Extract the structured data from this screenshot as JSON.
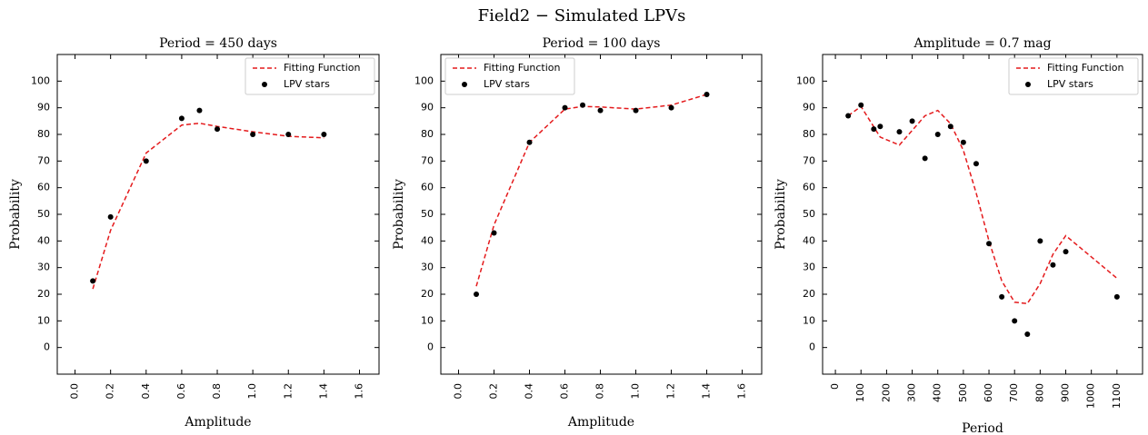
{
  "title": "Field2 − Simulated LPVs",
  "chart_data": [
    {
      "type": "line",
      "title": "Period = 450 days",
      "xlabel": "Amplitude",
      "ylabel": "Probability",
      "xlim": [
        -0.1,
        1.71
      ],
      "ylim": [
        -10,
        110
      ],
      "xticks": [
        {
          "value": 0,
          "label": "0.0"
        },
        {
          "value": 0.2,
          "label": "0.2"
        },
        {
          "value": 0.4,
          "label": "0.4"
        },
        {
          "value": 0.6,
          "label": "0.6"
        },
        {
          "value": 0.8,
          "label": "0.8"
        },
        {
          "value": 1,
          "label": "1.0"
        },
        {
          "value": 1.2,
          "label": "1.2"
        },
        {
          "value": 1.4,
          "label": "1.4"
        },
        {
          "value": 1.6,
          "label": "1.6"
        }
      ],
      "yticks": [
        0,
        10,
        20,
        30,
        40,
        50,
        60,
        70,
        80,
        90,
        100
      ],
      "legend": "upper right",
      "series": [
        {
          "name": "Fitting Function",
          "kind": "line",
          "color": "#e41a1c",
          "x": [
            0.1,
            0.2,
            0.4,
            0.6,
            0.7,
            0.8,
            1.0,
            1.2,
            1.4
          ],
          "values": [
            22,
            44,
            73,
            83.5,
            84.2,
            83,
            81,
            79.3,
            78.7
          ]
        },
        {
          "name": "LPV stars",
          "kind": "scatter",
          "color": "#000000",
          "x": [
            0.1,
            0.2,
            0.4,
            0.6,
            0.7,
            0.8,
            1.0,
            1.2,
            1.4
          ],
          "values": [
            25,
            49,
            70,
            86,
            89,
            82,
            80,
            80,
            80
          ]
        }
      ]
    },
    {
      "type": "line",
      "title": "Period = 100 days",
      "xlabel": "Amplitude",
      "ylabel": "Probability",
      "xlim": [
        -0.1,
        1.71
      ],
      "ylim": [
        -10,
        110
      ],
      "xticks": [
        {
          "value": 0,
          "label": "0.0"
        },
        {
          "value": 0.2,
          "label": "0.2"
        },
        {
          "value": 0.4,
          "label": "0.4"
        },
        {
          "value": 0.6,
          "label": "0.6"
        },
        {
          "value": 0.8,
          "label": "0.8"
        },
        {
          "value": 1,
          "label": "1.0"
        },
        {
          "value": 1.2,
          "label": "1.2"
        },
        {
          "value": 1.4,
          "label": "1.4"
        },
        {
          "value": 1.6,
          "label": "1.6"
        }
      ],
      "yticks": [
        0,
        10,
        20,
        30,
        40,
        50,
        60,
        70,
        80,
        90,
        100
      ],
      "legend": "upper left",
      "series": [
        {
          "name": "Fitting Function",
          "kind": "line",
          "color": "#e41a1c",
          "x": [
            0.1,
            0.2,
            0.4,
            0.6,
            0.7,
            0.8,
            1.0,
            1.2,
            1.4
          ],
          "values": [
            23,
            46,
            77,
            89.5,
            90.5,
            90.3,
            89.5,
            91,
            95
          ]
        },
        {
          "name": "LPV stars",
          "kind": "scatter",
          "color": "#000000",
          "x": [
            0.1,
            0.2,
            0.4,
            0.6,
            0.7,
            0.8,
            1.0,
            1.2,
            1.4
          ],
          "values": [
            20,
            43,
            77,
            90,
            91,
            89,
            89,
            90,
            95
          ]
        }
      ]
    },
    {
      "type": "line",
      "title": "Amplitude = 0.7 mag",
      "xlabel": "Period",
      "ylabel": "Probability",
      "xlim": [
        -50,
        1200
      ],
      "ylim": [
        -10,
        110
      ],
      "xticks": [
        0,
        100,
        200,
        300,
        400,
        500,
        600,
        700,
        800,
        900,
        1000,
        1100
      ],
      "yticks": [
        0,
        10,
        20,
        30,
        40,
        50,
        60,
        70,
        80,
        90,
        100
      ],
      "legend": "upper right",
      "series": [
        {
          "name": "Fitting Function",
          "kind": "line",
          "color": "#e41a1c",
          "x": [
            50,
            100,
            175,
            250,
            350,
            400,
            450,
            500,
            550,
            600,
            650,
            700,
            750,
            800,
            850,
            900,
            1100
          ],
          "values": [
            87,
            90.5,
            79,
            76,
            87,
            89,
            84,
            74,
            58,
            40,
            25,
            17,
            16.5,
            24,
            35,
            42,
            26
          ]
        },
        {
          "name": "LPV stars",
          "kind": "scatter",
          "color": "#000000",
          "x": [
            50,
            100,
            150,
            175,
            250,
            300,
            350,
            400,
            450,
            500,
            550,
            600,
            650,
            700,
            750,
            800,
            850,
            900,
            1100
          ],
          "values": [
            87,
            91,
            82,
            83,
            81,
            85,
            71,
            80,
            83,
            77,
            69,
            39,
            19,
            10,
            5,
            40,
            31,
            36,
            19
          ]
        }
      ]
    }
  ]
}
